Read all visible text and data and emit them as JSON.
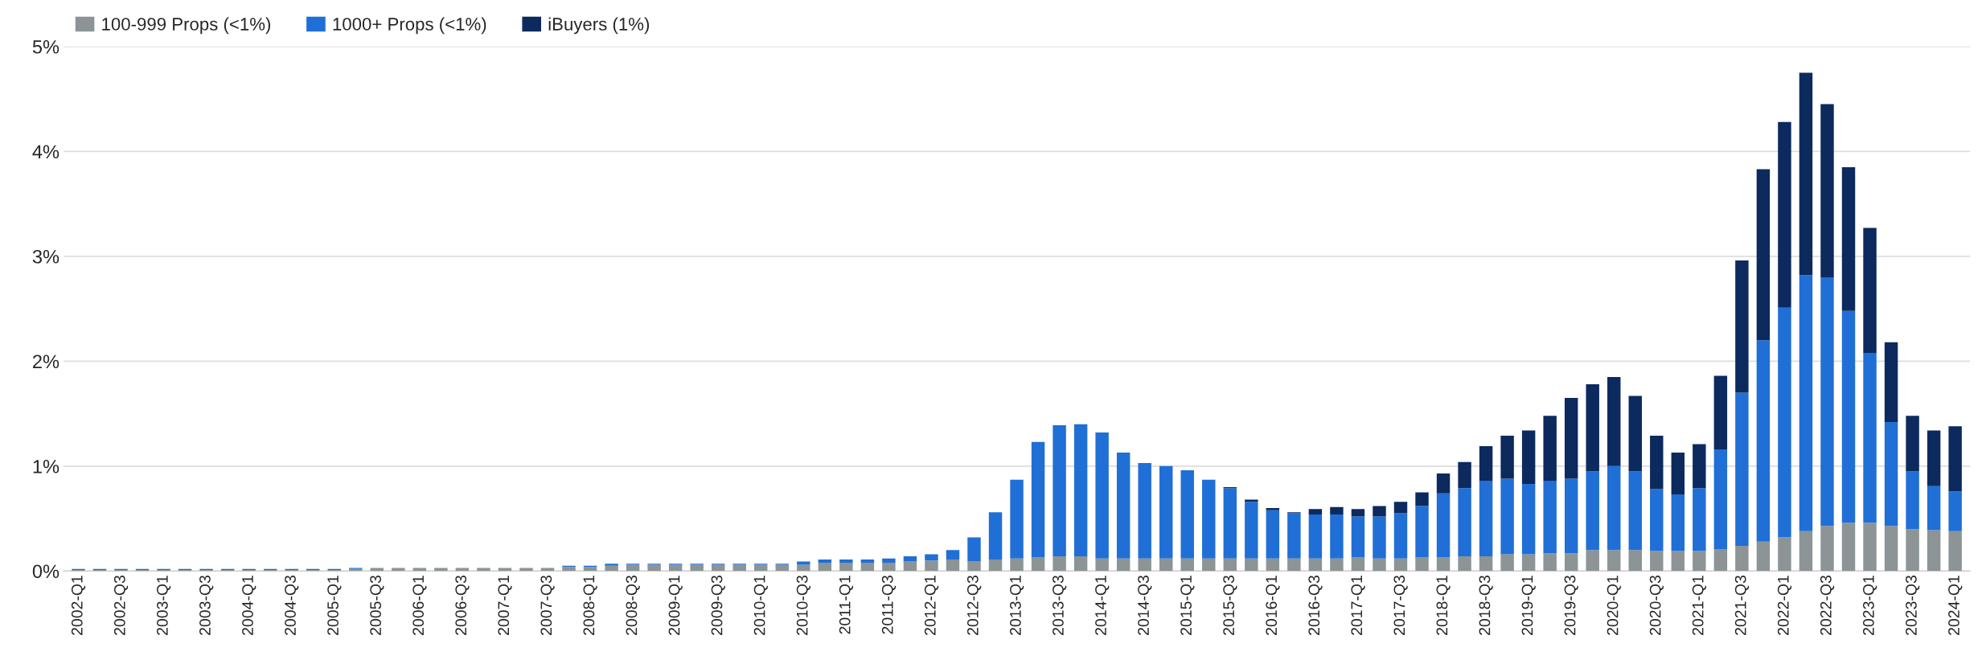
{
  "chart_data": {
    "type": "bar",
    "stacked": true,
    "categories": [
      "2002-Q1",
      null,
      "2002-Q3",
      null,
      "2003-Q1",
      null,
      "2003-Q3",
      null,
      "2004-Q1",
      null,
      "2004-Q3",
      null,
      "2005-Q1",
      null,
      "2005-Q3",
      null,
      "2006-Q1",
      null,
      "2006-Q3",
      null,
      "2007-Q1",
      null,
      "2007-Q3",
      null,
      "2008-Q1",
      null,
      "2008-Q3",
      null,
      "2009-Q1",
      null,
      "2009-Q3",
      null,
      "2010-Q1",
      null,
      "2010-Q3",
      null,
      "2011-Q1",
      null,
      "2011-Q3",
      null,
      "2012-Q1",
      null,
      "2012-Q3",
      null,
      "2013-Q1",
      null,
      "2013-Q3",
      null,
      "2014-Q1",
      null,
      "2014-Q3",
      null,
      "2015-Q1",
      null,
      "2015-Q3",
      null,
      "2016-Q1",
      null,
      "2016-Q3",
      null,
      "2017-Q1",
      null,
      "2017-Q3",
      null,
      "2018-Q1",
      null,
      "2018-Q3",
      null,
      "2019-Q1",
      null,
      "2019-Q3",
      null,
      "2020-Q1",
      null,
      "2020-Q3",
      null,
      "2021-Q1",
      null,
      "2021-Q3",
      null,
      "2022-Q1",
      null,
      "2022-Q3",
      null,
      "2023-Q1",
      null,
      "2023-Q3",
      null,
      "2024-Q1"
    ],
    "series": [
      {
        "name": "100-999 Props (<1%)",
        "color": "#8c9496",
        "values": [
          0.01,
          0.01,
          0.01,
          0.01,
          0.01,
          0.01,
          0.01,
          0.01,
          0.01,
          0.01,
          0.01,
          0.01,
          0.01,
          0.02,
          0.03,
          0.03,
          0.03,
          0.03,
          0.03,
          0.03,
          0.03,
          0.03,
          0.03,
          0.04,
          0.04,
          0.05,
          0.06,
          0.06,
          0.06,
          0.06,
          0.06,
          0.06,
          0.06,
          0.06,
          0.06,
          0.08,
          0.08,
          0.08,
          0.08,
          0.09,
          0.1,
          0.11,
          0.09,
          0.11,
          0.12,
          0.13,
          0.14,
          0.14,
          0.12,
          0.12,
          0.12,
          0.12,
          0.12,
          0.12,
          0.12,
          0.12,
          0.12,
          0.12,
          0.12,
          0.12,
          0.13,
          0.12,
          0.12,
          0.13,
          0.13,
          0.14,
          0.14,
          0.16,
          0.16,
          0.17,
          0.17,
          0.2,
          0.2,
          0.2,
          0.19,
          0.19,
          0.19,
          0.21,
          0.24,
          0.28,
          0.32,
          0.38,
          0.43,
          0.46,
          0.46,
          0.43,
          0.4,
          0.39,
          0.38
        ]
      },
      {
        "name": "1000+ Props (<1%)",
        "color": "#1f6fd6",
        "values": [
          0.01,
          0.01,
          0.01,
          0.01,
          0.01,
          0.01,
          0.01,
          0.01,
          0.01,
          0.01,
          0.01,
          0.01,
          0.01,
          0.01,
          null,
          null,
          null,
          null,
          null,
          null,
          null,
          null,
          null,
          0.01,
          0.01,
          0.02,
          0.01,
          0.01,
          0.01,
          0.01,
          0.01,
          0.01,
          0.01,
          0.01,
          0.03,
          0.03,
          0.03,
          0.03,
          0.04,
          0.05,
          0.06,
          0.09,
          0.23,
          0.45,
          0.75,
          1.1,
          1.25,
          1.26,
          1.2,
          1.01,
          0.91,
          0.88,
          0.84,
          0.75,
          0.67,
          0.54,
          0.46,
          0.43,
          0.42,
          0.42,
          0.39,
          0.4,
          0.43,
          0.49,
          0.61,
          0.65,
          0.72,
          0.72,
          0.67,
          0.69,
          0.71,
          0.75,
          0.8,
          0.75,
          0.59,
          0.54,
          0.6,
          0.95,
          1.46,
          1.92,
          2.19,
          2.44,
          2.37,
          2.02,
          1.62,
          0.99,
          0.55,
          0.42,
          0.38
        ]
      },
      {
        "name": "iBuyers (1%)",
        "color": "#0c2a5e",
        "values": [
          null,
          null,
          null,
          null,
          null,
          null,
          null,
          null,
          null,
          null,
          null,
          null,
          null,
          null,
          null,
          null,
          null,
          null,
          null,
          null,
          null,
          null,
          null,
          null,
          null,
          null,
          null,
          null,
          null,
          null,
          null,
          null,
          null,
          null,
          null,
          null,
          null,
          null,
          null,
          null,
          null,
          null,
          null,
          null,
          null,
          null,
          null,
          null,
          null,
          null,
          null,
          null,
          null,
          null,
          0.01,
          0.02,
          0.02,
          0.01,
          0.05,
          0.07,
          0.07,
          0.1,
          0.11,
          0.13,
          0.19,
          0.25,
          0.33,
          0.41,
          0.51,
          0.62,
          0.77,
          0.83,
          0.85,
          0.72,
          0.51,
          0.4,
          0.42,
          0.7,
          1.26,
          1.63,
          1.77,
          1.93,
          1.65,
          1.37,
          1.19,
          0.76,
          0.53,
          0.53,
          0.62
        ]
      }
    ],
    "ylim": [
      0,
      5
    ],
    "yticks": [
      {
        "value": 0,
        "label": "0%"
      },
      {
        "value": 1,
        "label": "1%"
      },
      {
        "value": 2,
        "label": "2%"
      },
      {
        "value": 3,
        "label": "3%"
      },
      {
        "value": 4,
        "label": "4%"
      },
      {
        "value": 5,
        "label": "5%"
      }
    ],
    "grid": "y",
    "legend": "top left"
  }
}
